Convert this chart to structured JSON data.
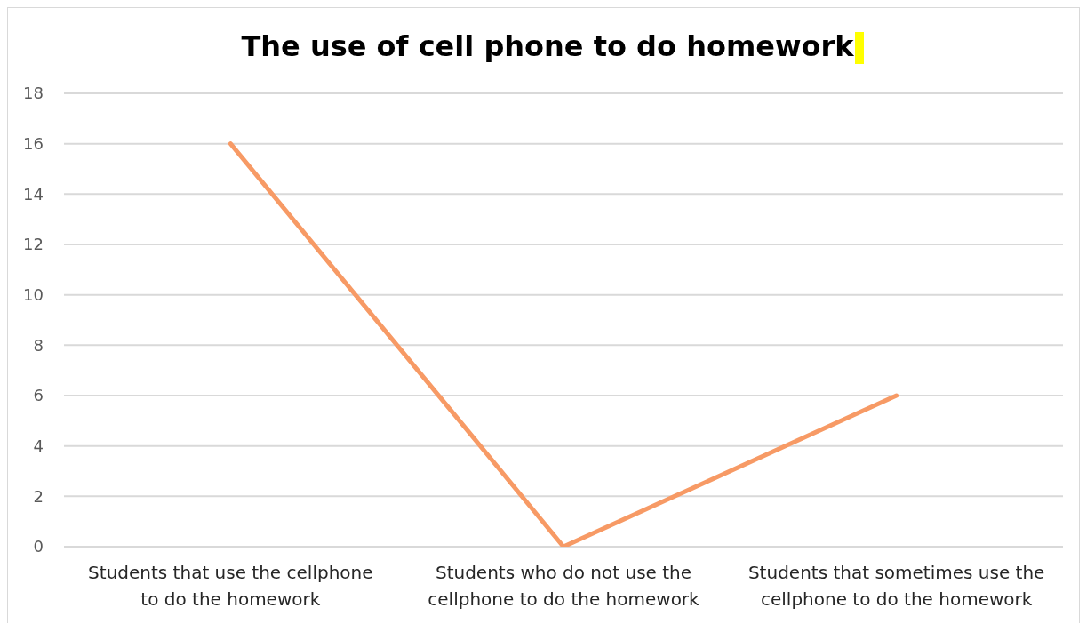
{
  "chart_data": {
    "type": "line",
    "title": "The use of cell phone to do homework",
    "categories": [
      "Students that use the cellphone to do the homework",
      "Students who do not use the cellphone to do the homework",
      "Students that sometimes use the cellphone to do the homework"
    ],
    "series": [
      {
        "color": "#f79a65",
        "values": [
          16,
          0,
          6
        ]
      }
    ],
    "ylim": [
      0,
      18
    ],
    "yticks": [
      0,
      2,
      4,
      6,
      8,
      10,
      12,
      14,
      16,
      18
    ],
    "grid": "y",
    "marker": "none"
  }
}
